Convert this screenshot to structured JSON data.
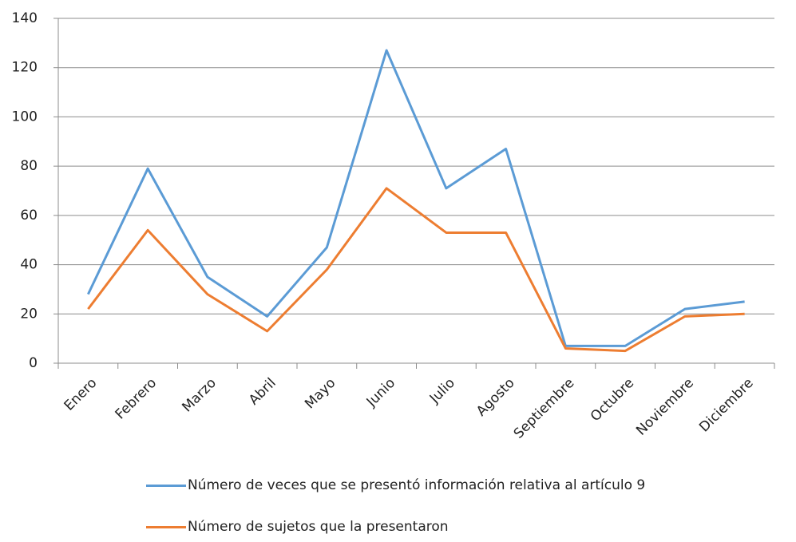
{
  "chart_data": {
    "type": "line",
    "categories": [
      "Enero",
      "Febrero",
      "Marzo",
      "Abril",
      "Mayo",
      "Junio",
      "Julio",
      "Agosto",
      "Septiembre",
      "Octubre",
      "Noviembre",
      "Diciembre"
    ],
    "series": [
      {
        "name": "Número de veces que se presentó información relativa al artículo 9",
        "color": "#5b9bd5",
        "values": [
          28,
          79,
          35,
          19,
          47,
          127,
          71,
          87,
          7,
          7,
          22,
          25
        ]
      },
      {
        "name": "Número de sujetos que la presentaron",
        "color": "#ed7d31",
        "values": [
          22,
          54,
          28,
          13,
          38,
          71,
          53,
          53,
          6,
          5,
          19,
          20
        ]
      }
    ],
    "ylim": [
      0,
      140
    ],
    "yticks": [
      0,
      20,
      40,
      60,
      80,
      100,
      120,
      140
    ],
    "grid": true,
    "legend": "bottom"
  }
}
